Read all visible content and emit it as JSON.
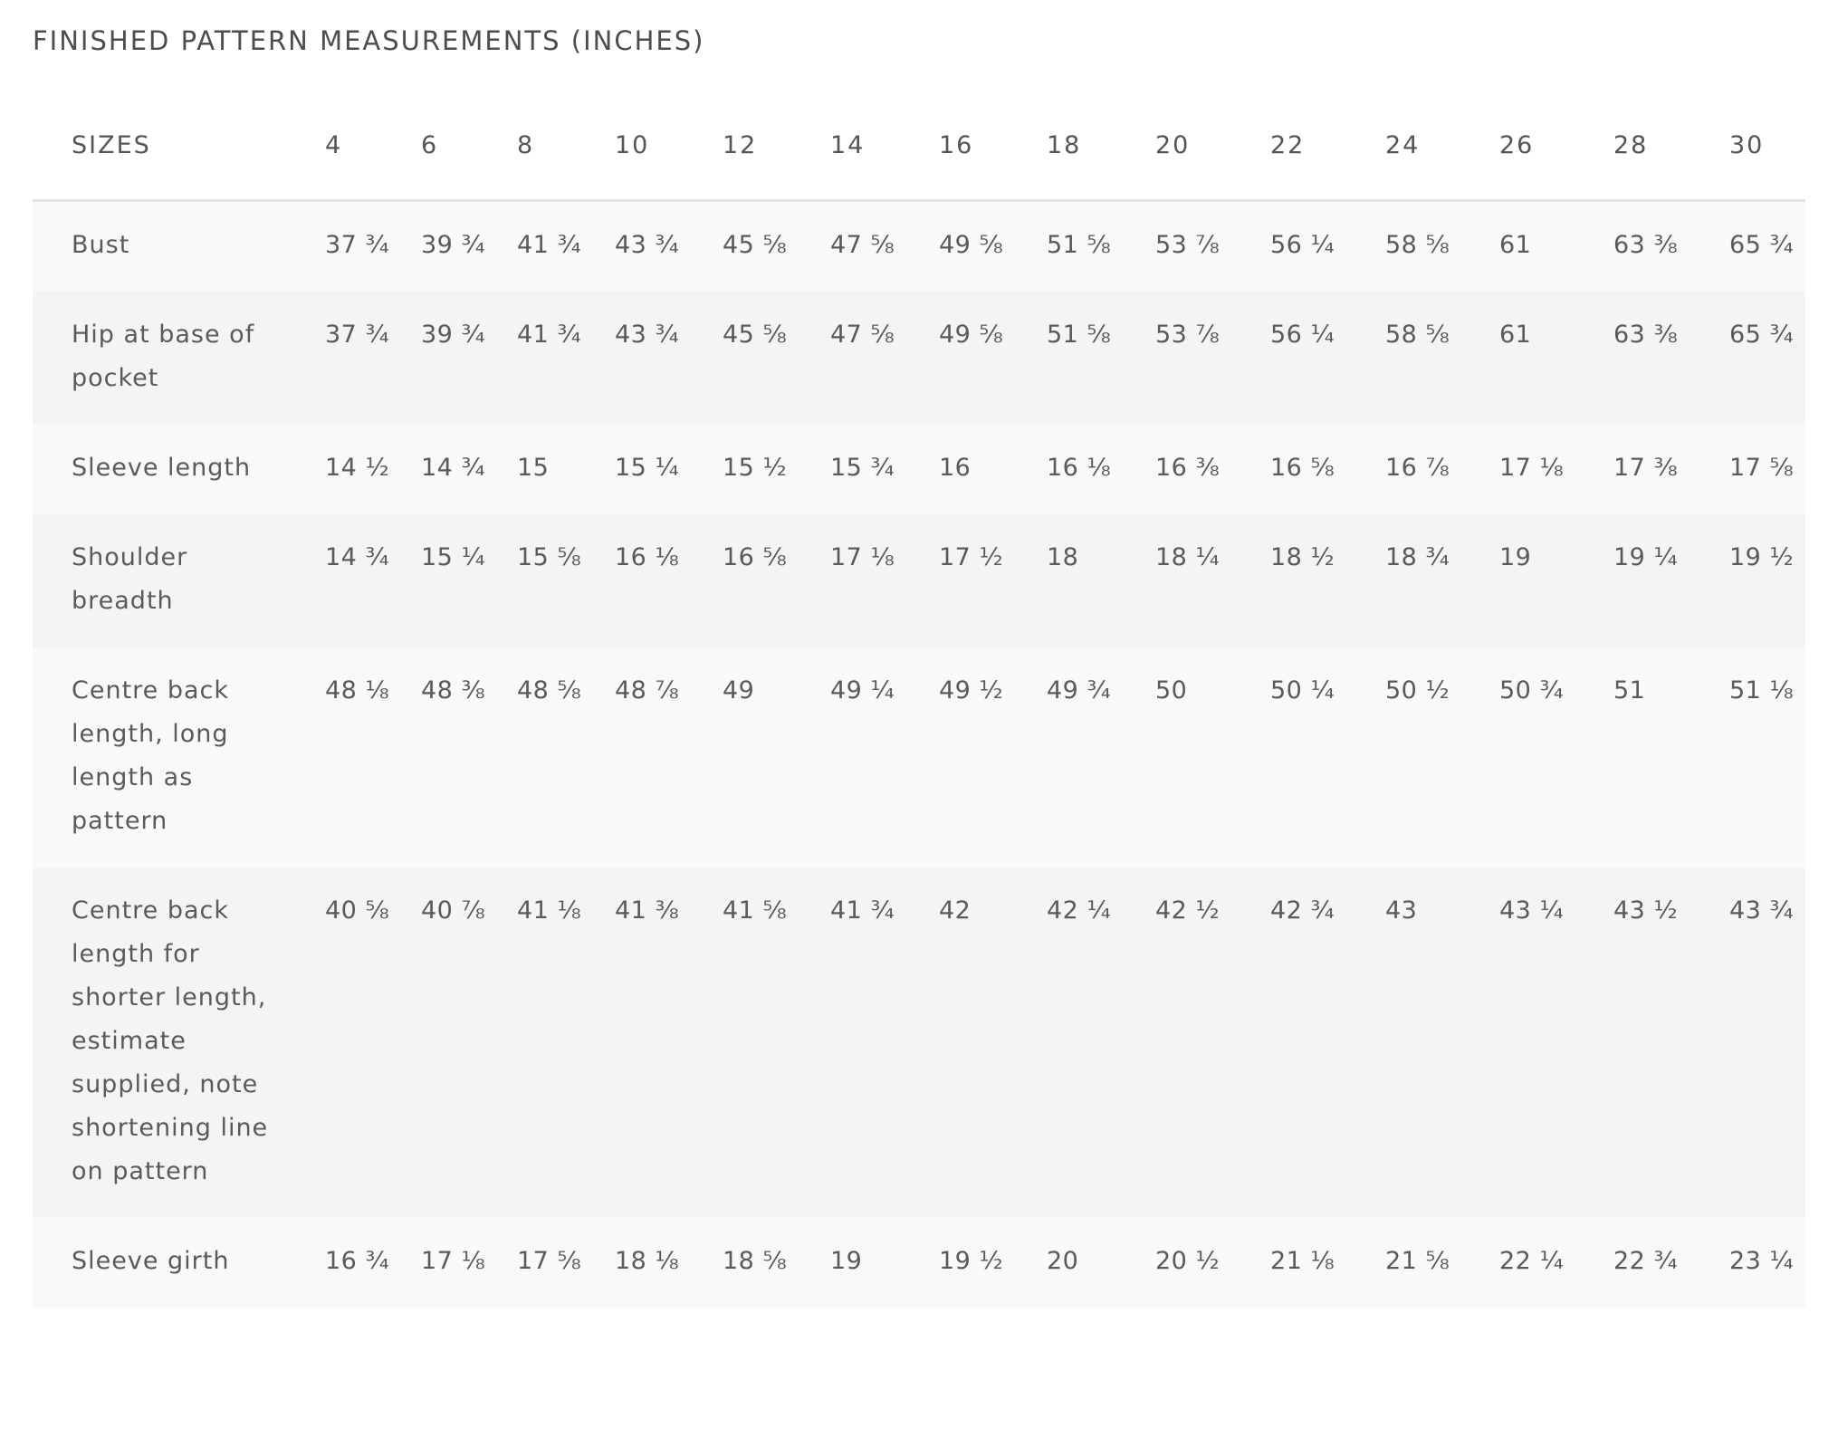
{
  "title": "FINISHED PATTERN MEASUREMENTS (INCHES)",
  "table": {
    "header_label": "SIZES",
    "sizes": [
      "4",
      "6",
      "8",
      "10",
      "12",
      "14",
      "16",
      "18",
      "20",
      "22",
      "24",
      "26",
      "28",
      "30"
    ],
    "rows": [
      {
        "label": "Bust",
        "values": [
          "37 ¾",
          "39 ¾",
          "41 ¾",
          "43 ¾",
          "45 ⅝",
          "47 ⅝",
          "49 ⅝",
          "51 ⅝",
          "53 ⅞",
          "56 ¼",
          "58 ⅝",
          "61",
          "63 ⅜",
          "65 ¾"
        ]
      },
      {
        "label": "Hip at base of pocket",
        "values": [
          "37 ¾",
          "39 ¾",
          "41 ¾",
          "43 ¾",
          "45 ⅝",
          "47 ⅝",
          "49 ⅝",
          "51 ⅝",
          "53 ⅞",
          "56 ¼",
          "58 ⅝",
          "61",
          "63 ⅜",
          "65 ¾"
        ]
      },
      {
        "label": "Sleeve length",
        "values": [
          "14 ½",
          "14 ¾",
          "15",
          "15 ¼",
          "15 ½",
          "15 ¾",
          "16",
          "16 ⅛",
          "16 ⅜",
          "16 ⅝",
          "16 ⅞",
          "17 ⅛",
          "17 ⅜",
          "17 ⅝"
        ]
      },
      {
        "label": "Shoulder breadth",
        "values": [
          "14 ¾",
          "15 ¼",
          "15 ⅝",
          "16 ⅛",
          "16 ⅝",
          "17 ⅛",
          "17 ½",
          "18",
          "18 ¼",
          "18 ½",
          "18 ¾",
          "19",
          "19 ¼",
          "19 ½"
        ]
      },
      {
        "label": "Centre back length, long length as pattern",
        "values": [
          "48 ⅛",
          "48 ⅜",
          "48 ⅝",
          "48 ⅞",
          "49",
          "49 ¼",
          "49 ½",
          "49 ¾",
          "50",
          "50 ¼",
          "50 ½",
          "50 ¾",
          "51",
          "51 ⅛"
        ]
      },
      {
        "label": "Centre back length for shorter length, estimate supplied, note shortening line on pattern",
        "values": [
          "40 ⅝",
          "40 ⅞",
          "41 ⅛",
          "41 ⅜",
          "41 ⅝",
          "41 ¾",
          "42",
          "42 ¼",
          "42 ½",
          "42 ¾",
          "43",
          "43 ¼",
          "43 ½",
          "43 ¾"
        ]
      },
      {
        "label": "Sleeve girth",
        "values": [
          "16 ¾",
          "17 ⅛",
          "17 ⅝",
          "18 ⅛",
          "18 ⅝",
          "19",
          "19 ½",
          "20",
          "20 ½",
          "21 ⅛",
          "21 ⅝",
          "22 ¼",
          "22 ¾",
          "23 ¼"
        ]
      }
    ]
  }
}
